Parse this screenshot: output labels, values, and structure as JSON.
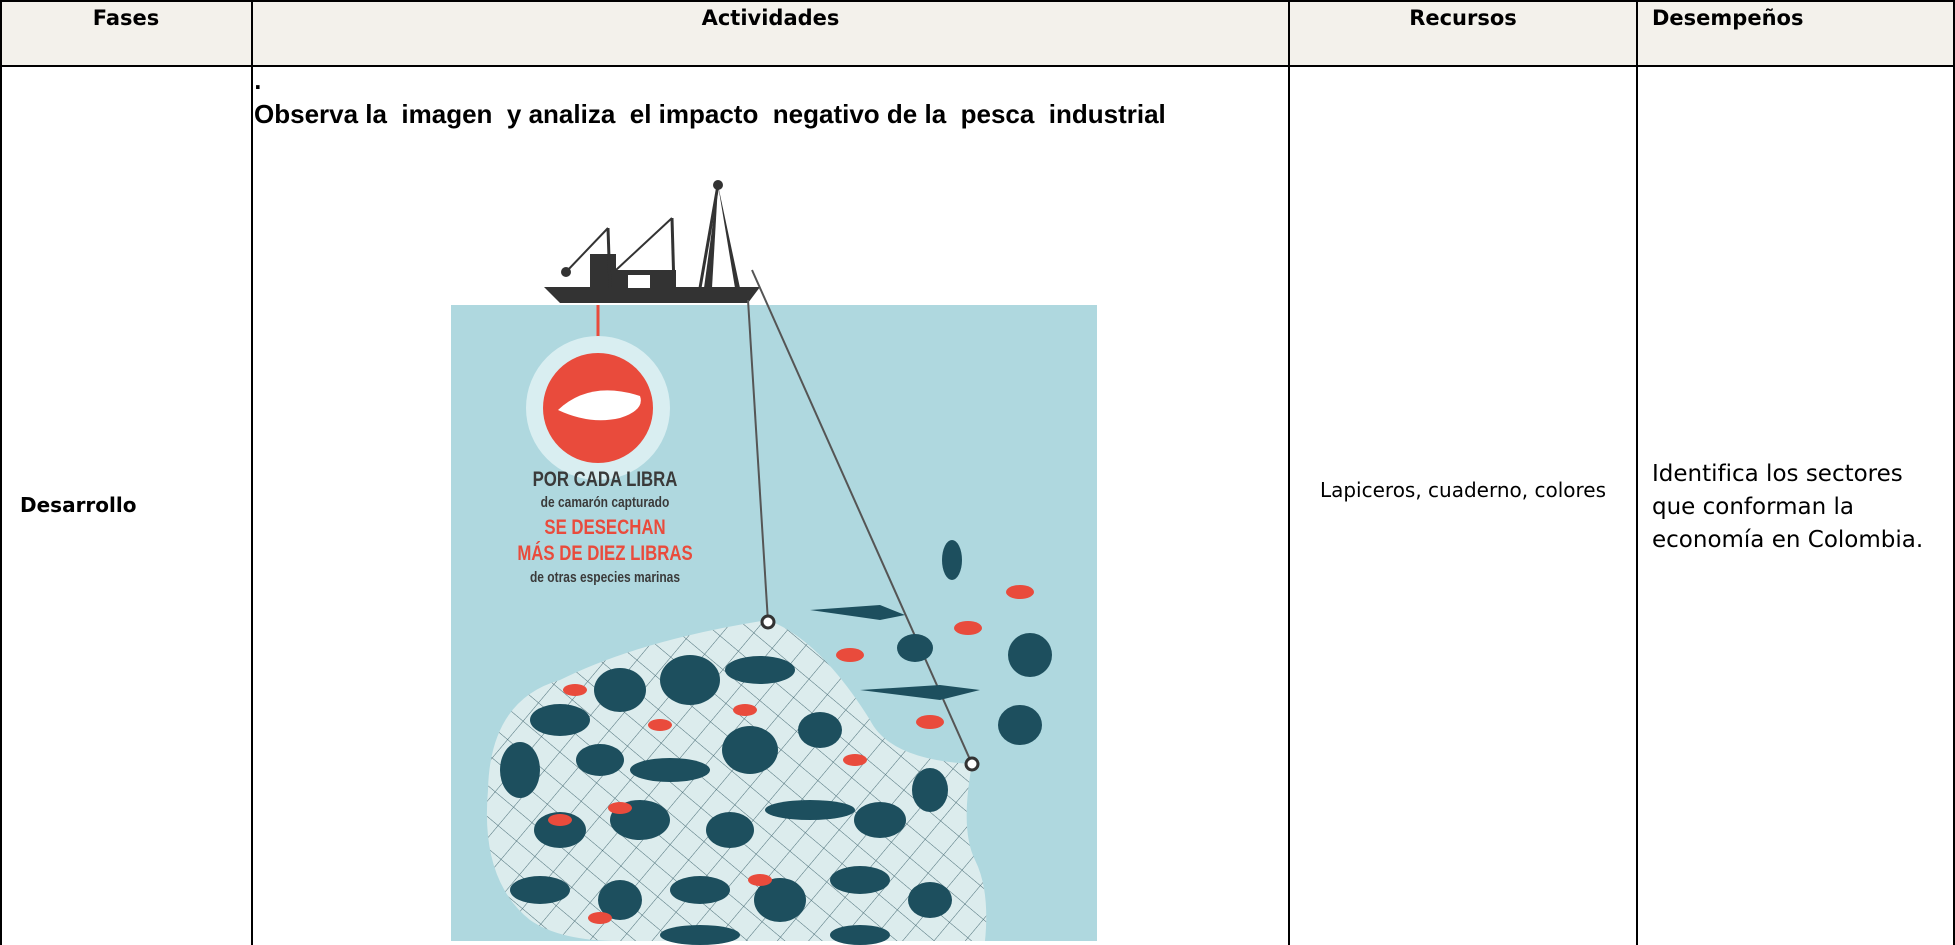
{
  "header": {
    "columns": [
      "Fases",
      "Actividades",
      "Recursos",
      "Desempeños"
    ]
  },
  "rows": [
    {
      "fase": "Desarrollo",
      "actividad": {
        "bullet": ".",
        "instruction": "Observa la  imagen  y analiza  el impacto  negativo de la  pesca  industrial",
        "image_text": [
          "POR CADA LIBRA",
          "de camarón capturado",
          "SE DESECHAN",
          "MÁS DE DIEZ LIBRAS",
          "de otras especies marinas"
        ]
      },
      "recursos": "Lapiceros, cuaderno, colores",
      "desempenos": "Identifica los sectores que conforman la  economía en Colombia."
    }
  ]
}
